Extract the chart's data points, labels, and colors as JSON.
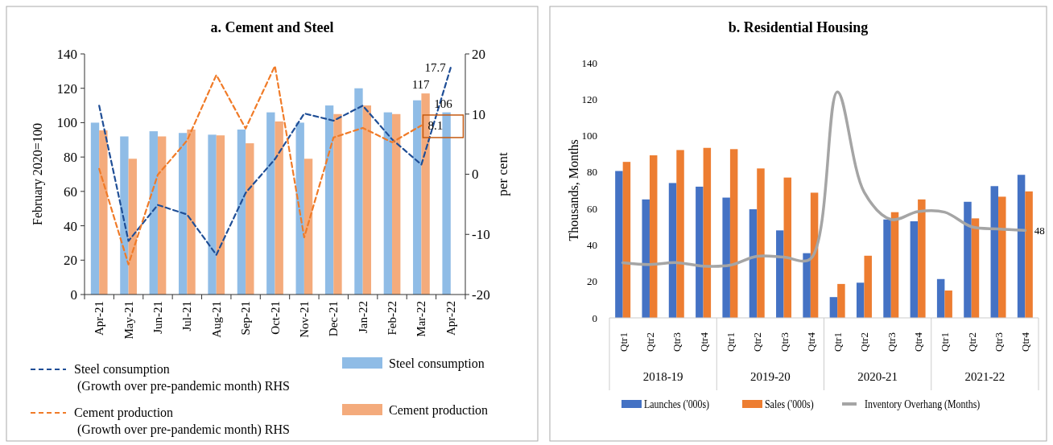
{
  "chart_data": [
    {
      "type": "bar",
      "title": "a. Cement and Steel",
      "ylabel": "February 2020=100",
      "y2label": "per cent",
      "categories": [
        "Apr-21",
        "May-21",
        "Jun-21",
        "Jul-21",
        "Aug-21",
        "Sep-21",
        "Oct-21",
        "Nov-21",
        "Dec-21",
        "Jan-22",
        "Feb-22",
        "Mar-22",
        "Apr-22"
      ],
      "series": [
        {
          "name": "Steel consumption",
          "color": "#8fbce6",
          "values": [
            100,
            92,
            95,
            94,
            93,
            96,
            106,
            100,
            110,
            120,
            106,
            113,
            106
          ],
          "value_labels": [
            null,
            null,
            null,
            null,
            null,
            null,
            null,
            null,
            null,
            null,
            null,
            null,
            "106"
          ]
        },
        {
          "name": "Cement production",
          "color": "#f4ab7c",
          "values": [
            95.5,
            79,
            92,
            96,
            92.6,
            88,
            100.7,
            79,
            105,
            110,
            105,
            117,
            null
          ],
          "value_labels": [
            null,
            null,
            null,
            null,
            null,
            null,
            null,
            null,
            null,
            null,
            null,
            "117",
            null
          ]
        },
        {
          "type": "line",
          "axis": "y2",
          "line_style": "dashed",
          "name": "Steel consumption (Growth over pre-pandemic month) RHS",
          "color": "#1f4e96",
          "values": [
            11.4,
            -11.1,
            -5.1,
            -6.7,
            -13.4,
            -3.1,
            2.5,
            10.1,
            8.9,
            11.4,
            5.8,
            1.6,
            17.7
          ],
          "value_labels": [
            null,
            null,
            null,
            null,
            null,
            null,
            null,
            null,
            null,
            null,
            null,
            null,
            "17.7"
          ]
        },
        {
          "type": "line",
          "axis": "y2",
          "line_style": "dashed",
          "name": "Cement production (Growth over pre-pandemic month) RHS",
          "color": "#f07b28",
          "values": [
            0.9,
            -15,
            -0.1,
            5.6,
            16.5,
            7.6,
            18,
            -10.5,
            6.1,
            7.7,
            5.3,
            8.1,
            null
          ],
          "value_labels": [
            null,
            null,
            null,
            null,
            null,
            null,
            null,
            null,
            null,
            null,
            null,
            "8.1",
            null
          ]
        }
      ],
      "ylim": [
        0,
        140
      ],
      "yticks": [
        0,
        20,
        40,
        60,
        80,
        100,
        120,
        140
      ],
      "y2lim": [
        -20,
        20
      ],
      "y2ticks": [
        -20,
        -10,
        0,
        10,
        20
      ],
      "legend": "bottom"
    },
    {
      "type": "bar",
      "title": "b. Residential Housing",
      "ylabel": "Thousands, Months",
      "categories": [
        "Qtr1",
        "Qtr2",
        "Qtr3",
        "Qtr4",
        "Qtr1",
        "Qtr2",
        "Qtr3",
        "Qtr4",
        "Qtr1",
        "Qtr2",
        "Qtr3",
        "Qtr4",
        "Qtr1",
        "Qtr2",
        "Qtr3",
        "Qtr4"
      ],
      "annotations": [
        "2018-19",
        "2019-20",
        "2020-21",
        "2021-22"
      ],
      "series": [
        {
          "name": "Launches ('000s)",
          "color": "#4472c4",
          "values": [
            80.6,
            65,
            74,
            72,
            66,
            59.6,
            48,
            35.5,
            11.4,
            19.3,
            54,
            53,
            21.3,
            63.7,
            72.3,
            78.5
          ]
        },
        {
          "name": "Sales ('000s)",
          "color": "#ed7d31",
          "values": [
            85.6,
            89.2,
            92.1,
            93.3,
            92.6,
            82,
            77,
            68.7,
            18.6,
            34.1,
            58,
            65,
            15,
            54.6,
            66.5,
            69.4
          ]
        },
        {
          "type": "line",
          "name": "Inventory Overhang (Months)",
          "color": "#a5a5a5",
          "values": [
            30.3,
            29.3,
            30.3,
            28.4,
            28.9,
            33.8,
            33.3,
            32.4,
            124,
            69,
            54,
            58.3,
            58,
            50,
            48.8,
            48
          ],
          "value_labels": [
            null,
            null,
            null,
            null,
            null,
            null,
            null,
            null,
            null,
            null,
            null,
            null,
            null,
            null,
            null,
            "48"
          ]
        }
      ],
      "ylim": [
        0,
        140
      ],
      "yticks": [
        0,
        20,
        40,
        60,
        80,
        100,
        120,
        140
      ],
      "legend": "bottom"
    }
  ]
}
